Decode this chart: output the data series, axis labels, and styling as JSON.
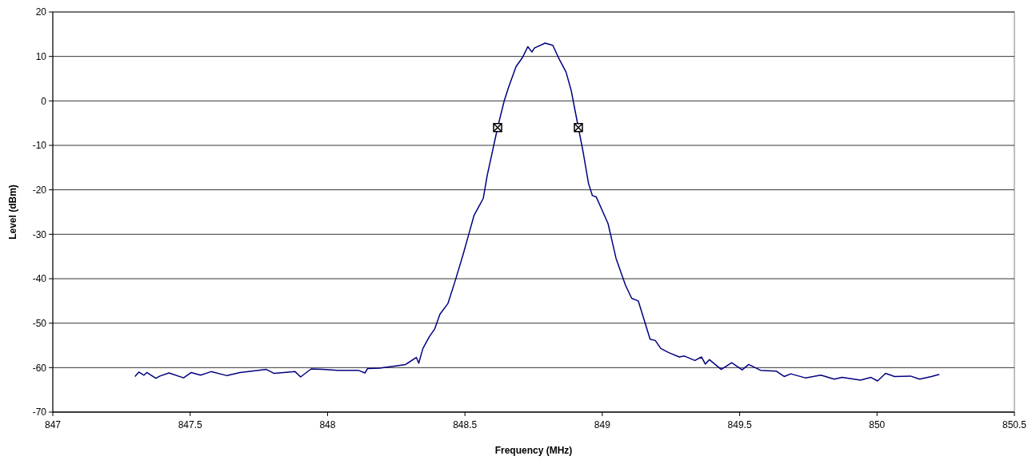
{
  "chart_data": {
    "type": "line",
    "xlabel": "Frequency (MHz)",
    "ylabel": "Level (dBm)",
    "xlim": [
      847,
      850.5
    ],
    "xticks": [
      847,
      847.5,
      848,
      848.5,
      849,
      849.5,
      850,
      850.5
    ],
    "ylim": [
      -70,
      20
    ],
    "yticks": [
      -70,
      -60,
      -50,
      -40,
      -30,
      -20,
      -10,
      0,
      10,
      20
    ],
    "grid": "y",
    "line_style": "solid",
    "series": [
      {
        "color": "#000080",
        "marker": "none",
        "x": [
          847.299,
          847.313,
          847.332,
          847.342,
          847.375,
          847.39,
          847.423,
          847.476,
          847.504,
          847.538,
          847.576,
          847.634,
          847.681,
          847.748,
          847.777,
          847.806,
          847.882,
          847.902,
          847.94,
          847.983,
          848.036,
          848.112,
          848.136,
          848.146,
          848.19,
          848.284,
          848.323,
          848.332,
          848.347,
          848.37,
          848.39,
          848.409,
          848.438,
          848.466,
          848.495,
          848.514,
          848.533,
          848.567,
          848.581,
          848.6,
          848.619,
          848.643,
          848.658,
          848.686,
          848.71,
          848.729,
          848.744,
          848.753,
          848.792,
          848.82,
          848.84,
          848.868,
          848.887,
          848.902,
          848.913,
          848.93,
          848.95,
          848.964,
          848.978,
          849.021,
          849.05,
          849.084,
          849.107,
          849.131,
          849.174,
          849.193,
          849.213,
          849.241,
          849.28,
          849.299,
          849.337,
          849.361,
          849.375,
          849.39,
          849.433,
          849.471,
          849.509,
          849.533,
          849.576,
          849.634,
          849.662,
          849.686,
          849.739,
          849.796,
          849.844,
          849.873,
          849.94,
          849.978,
          850.002,
          850.031,
          850.064,
          850.122,
          850.155,
          850.198,
          850.227
        ],
        "values": [
          -62.0,
          -61.0,
          -61.7,
          -61.1,
          -62.4,
          -61.9,
          -61.2,
          -62.3,
          -61.1,
          -61.7,
          -60.9,
          -61.8,
          -61.1,
          -60.6,
          -60.4,
          -61.3,
          -60.9,
          -62.1,
          -60.3,
          -60.4,
          -60.6,
          -60.6,
          -61.2,
          -60.2,
          -60.1,
          -59.3,
          -57.7,
          -59.0,
          -55.7,
          -53.1,
          -51.3,
          -48.0,
          -45.6,
          -40.2,
          -34.2,
          -30.0,
          -25.8,
          -21.9,
          -16.8,
          -11.4,
          -6.0,
          0.0,
          2.9,
          7.7,
          9.8,
          12.2,
          11.0,
          11.9,
          13.0,
          12.5,
          9.8,
          6.5,
          2.3,
          -2.5,
          -6.0,
          -11.4,
          -18.6,
          -21.3,
          -21.6,
          -27.6,
          -35.4,
          -41.4,
          -44.4,
          -45.0,
          -53.6,
          -53.9,
          -55.7,
          -56.6,
          -57.6,
          -57.4,
          -58.4,
          -57.6,
          -59.2,
          -58.2,
          -60.4,
          -58.9,
          -60.5,
          -59.3,
          -60.6,
          -60.8,
          -62.0,
          -61.4,
          -62.3,
          -61.7,
          -62.6,
          -62.2,
          -62.8,
          -62.2,
          -63.0,
          -61.3,
          -62.0,
          -61.9,
          -62.6,
          -62.0,
          -61.5
        ]
      },
      {
        "type": "scatter",
        "color": "#000000",
        "marker": "square",
        "x": [
          848.619,
          848.913
        ],
        "values": [
          -6.0,
          -6.0
        ]
      }
    ]
  }
}
